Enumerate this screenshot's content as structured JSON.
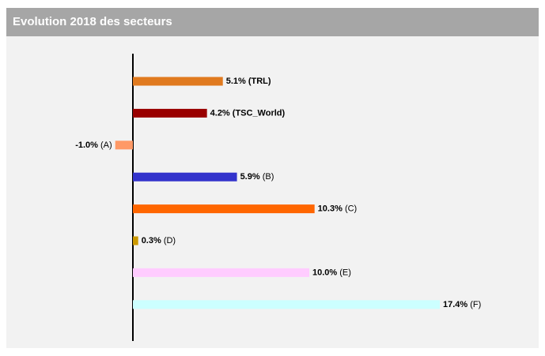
{
  "chart_data": {
    "type": "bar",
    "orientation": "horizontal",
    "title": "Evolution 2018 des secteurs",
    "categories": [
      "(TRL)",
      "(TSC_World)",
      "(A)",
      "(B)",
      "(C)",
      "(D)",
      "(E)",
      "(F)"
    ],
    "values": [
      5.1,
      4.2,
      -1.0,
      5.9,
      10.3,
      0.3,
      10.0,
      17.4
    ],
    "value_labels": [
      "5.1%",
      "4.2%",
      "-1.0%",
      "5.9%",
      "10.3%",
      "0.3%",
      "10.0%",
      "17.4%"
    ],
    "colors": [
      "#e07a1f",
      "#990000",
      "#ff9966",
      "#3333cc",
      "#ff6600",
      "#cc9900",
      "#ffccff",
      "#ccffff"
    ]
  }
}
